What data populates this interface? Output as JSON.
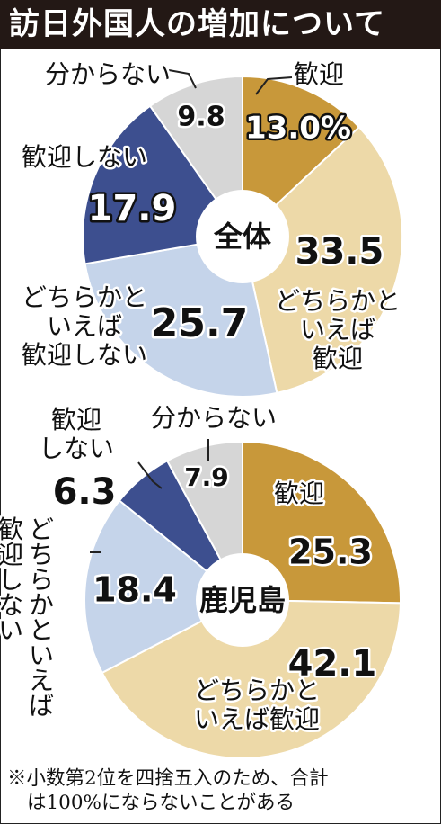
{
  "title": "訪日外国人の増加について",
  "colors": {
    "welcome": "#C8983A",
    "somewhat_welcome": "#EDD9A8",
    "somewhat_not_welcome": "#C5D4EA",
    "not_welcome": "#3D4F8F",
    "unknown": "#D6D6D6"
  },
  "chart_data": [
    {
      "type": "pie",
      "title": "全体",
      "categories": [
        "歓迎",
        "どちらかといえば歓迎",
        "どちらかといえば歓迎しない",
        "歓迎しない",
        "分からない"
      ],
      "values": [
        13.0,
        33.5,
        25.7,
        17.9,
        9.8
      ],
      "value_labels": [
        "13.0%",
        "33.5",
        "25.7",
        "17.9",
        "9.8"
      ],
      "category_labels": [
        [
          "歓迎"
        ],
        [
          "どちらかと",
          "いえば",
          "歓迎"
        ],
        [
          "どちらかと",
          "いえば",
          "歓迎しない"
        ],
        [
          "歓迎しない"
        ],
        [
          "分からない"
        ]
      ]
    },
    {
      "type": "pie",
      "title": "鹿児島",
      "categories": [
        "歓迎",
        "どちらかといえば歓迎",
        "どちらかといえば歓迎しない",
        "歓迎しない",
        "分からない"
      ],
      "values": [
        25.3,
        42.1,
        18.4,
        6.3,
        7.9
      ],
      "value_labels": [
        "25.3",
        "42.1",
        "18.4",
        "6.3",
        "7.9"
      ],
      "category_labels": [
        [
          "歓迎"
        ],
        [
          "どちらかと",
          "いえば歓迎"
        ],
        [
          "どちらかといえば",
          "歓迎しない"
        ],
        [
          "歓迎",
          "しない"
        ],
        [
          "分からない"
        ]
      ]
    }
  ],
  "footnote": {
    "line1": "※小数第2位を四捨五入のため、合計",
    "line2": "は100%にならないことがある"
  }
}
